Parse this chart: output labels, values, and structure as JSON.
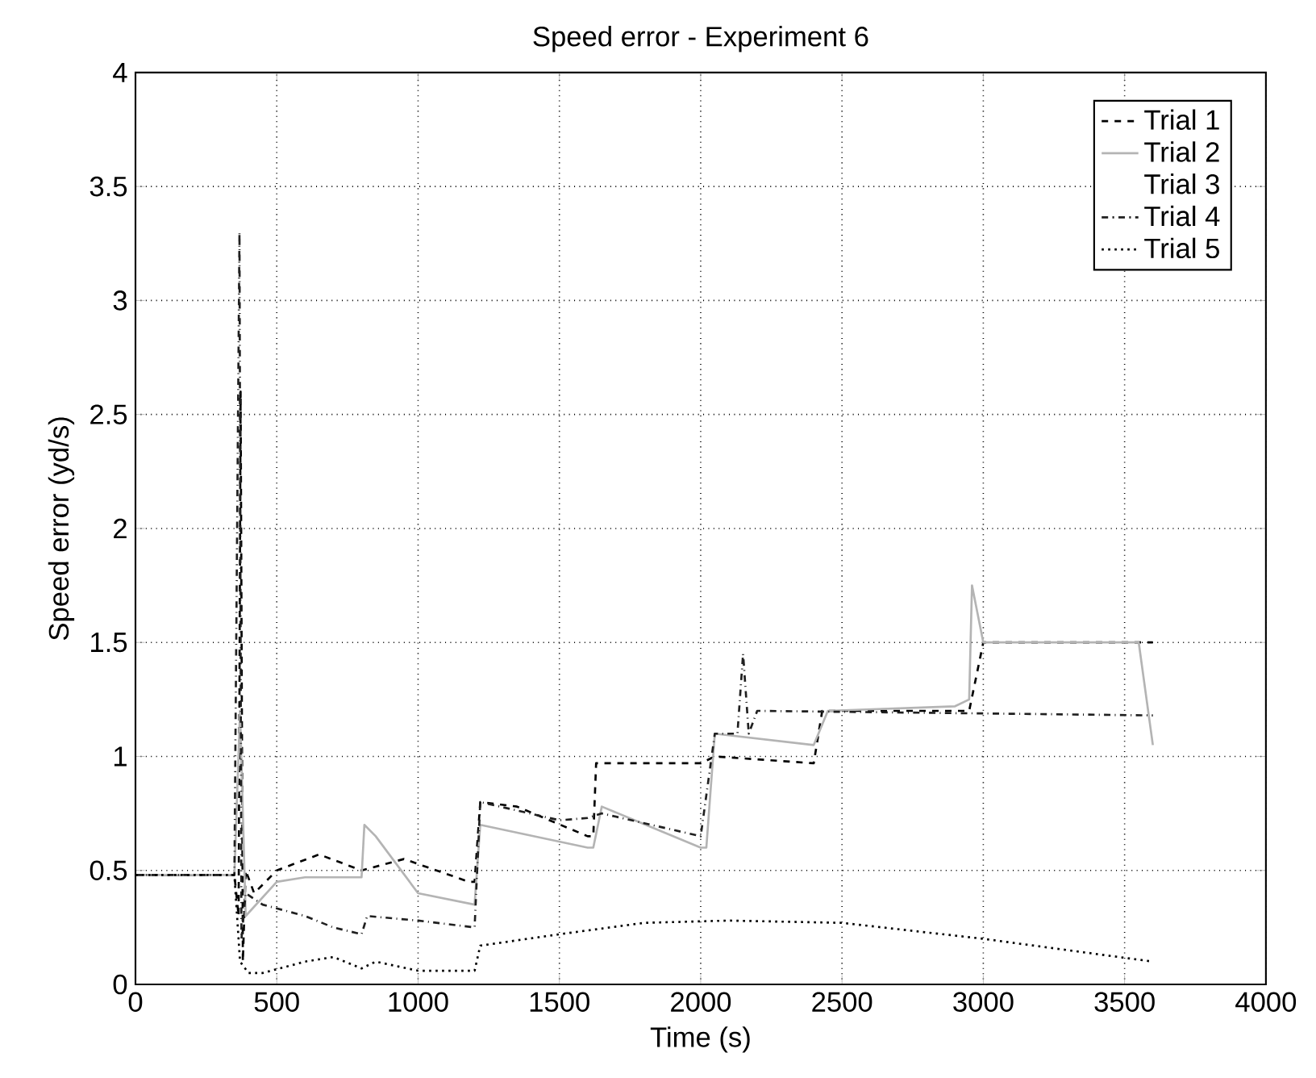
{
  "chart_data": {
    "type": "line",
    "title": "Speed error - Experiment 6",
    "xlabel": "Time (s)",
    "ylabel": "Speed error (yd/s)",
    "xlim": [
      0,
      4000
    ],
    "ylim": [
      0,
      4
    ],
    "xticks": [
      0,
      500,
      1000,
      1500,
      2000,
      2500,
      3000,
      3500,
      4000
    ],
    "yticks": [
      0,
      0.5,
      1,
      1.5,
      2,
      2.5,
      3,
      3.5,
      4
    ],
    "grid": true,
    "legend": "top right",
    "series": [
      {
        "name": "Trial 1",
        "color": "#000000",
        "line_style": "dashed",
        "x": [
          0,
          10,
          350,
          365,
          372,
          380,
          390,
          420,
          500,
          650,
          800,
          950,
          1180,
          1200,
          1220,
          1350,
          1600,
          1620,
          1630,
          2000,
          2050,
          2400,
          2430,
          2950,
          3000,
          3600
        ],
        "values": [
          0.48,
          0.48,
          0.48,
          0.3,
          2.6,
          0.1,
          0.5,
          0.4,
          0.5,
          0.57,
          0.5,
          0.55,
          0.45,
          0.45,
          0.8,
          0.78,
          0.65,
          0.65,
          0.97,
          0.97,
          1.0,
          0.97,
          1.2,
          1.2,
          1.5,
          1.5
        ]
      },
      {
        "name": "Trial 2",
        "color": "#b4b4b4",
        "line_style": "solid",
        "x": [
          0,
          350,
          370,
          390,
          500,
          600,
          800,
          810,
          850,
          1000,
          1200,
          1220,
          1600,
          1620,
          1650,
          2000,
          2020,
          2050,
          2400,
          2450,
          2900,
          2950,
          2960,
          3000,
          3550,
          3600
        ],
        "values": [
          0.48,
          0.48,
          1.2,
          0.3,
          0.45,
          0.47,
          0.47,
          0.7,
          0.65,
          0.4,
          0.35,
          0.7,
          0.6,
          0.6,
          0.78,
          0.6,
          0.6,
          1.1,
          1.05,
          1.2,
          1.22,
          1.25,
          1.75,
          1.5,
          1.5,
          1.05
        ]
      },
      {
        "name": "Trial 3"
      },
      {
        "name": "Trial 4",
        "color": "#202020",
        "line_style": "dashdot",
        "x": [
          0,
          350,
          368,
          375,
          390,
          450,
          600,
          700,
          800,
          820,
          1000,
          1200,
          1220,
          1500,
          1600,
          1650,
          2000,
          2050,
          2130,
          2150,
          2170,
          2200,
          3600
        ],
        "values": [
          0.48,
          0.48,
          3.3,
          0.2,
          0.4,
          0.35,
          0.3,
          0.25,
          0.22,
          0.3,
          0.28,
          0.25,
          0.8,
          0.72,
          0.73,
          0.75,
          0.65,
          1.1,
          1.1,
          1.45,
          1.1,
          1.2,
          1.18
        ]
      },
      {
        "name": "Trial 5",
        "color": "#000000",
        "line_style": "dotted",
        "x": [
          0,
          350,
          370,
          400,
          450,
          600,
          700,
          800,
          850,
          1000,
          1200,
          1220,
          1500,
          1800,
          2100,
          2500,
          3000,
          3600
        ],
        "values": [
          0.48,
          0.48,
          0.1,
          0.05,
          0.05,
          0.1,
          0.12,
          0.07,
          0.1,
          0.06,
          0.06,
          0.17,
          0.22,
          0.27,
          0.28,
          0.27,
          0.2,
          0.1
        ]
      }
    ]
  }
}
